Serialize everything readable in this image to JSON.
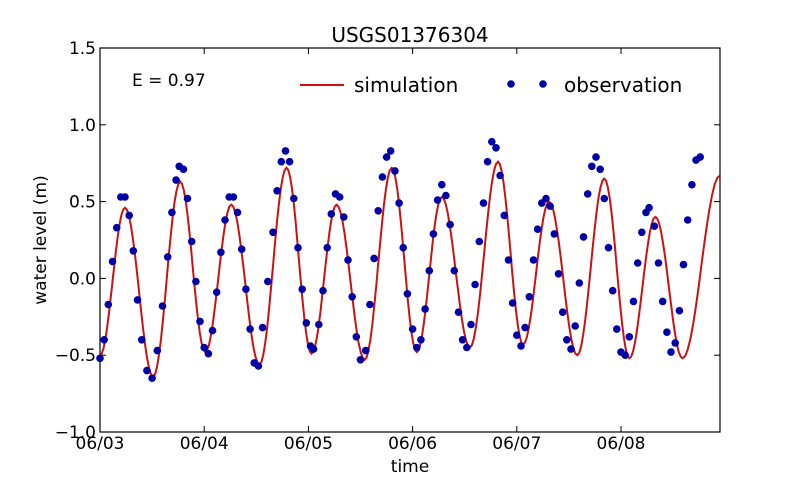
{
  "chart_data": {
    "type": "line",
    "title": "USGS01376304",
    "xlabel": "time",
    "ylabel": "water level (m)",
    "ylim": [
      -1.0,
      1.5
    ],
    "xlim_days": [
      0,
      5.95
    ],
    "x_ticks": [
      "06/03",
      "06/04",
      "06/05",
      "06/06",
      "06/07",
      "06/08"
    ],
    "y_ticks": [
      "−1.0",
      "−0.5",
      "0.0",
      "0.5",
      "1.0",
      "1.5"
    ],
    "annotation": "E = 0.97",
    "legend": {
      "placement": "top-right",
      "entries": [
        "simulation",
        "observation"
      ]
    },
    "colors": {
      "simulation": "#cc1111",
      "observation": "#0000aa"
    },
    "series": [
      {
        "name": "simulation",
        "extrema": [
          [
            0.0,
            -0.5
          ],
          [
            0.24,
            0.46
          ],
          [
            0.51,
            -0.64
          ],
          [
            0.77,
            0.63
          ],
          [
            1.01,
            -0.48
          ],
          [
            1.26,
            0.48
          ],
          [
            1.53,
            -0.56
          ],
          [
            1.79,
            0.72
          ],
          [
            2.03,
            -0.49
          ],
          [
            2.27,
            0.48
          ],
          [
            2.54,
            -0.53
          ],
          [
            2.8,
            0.72
          ],
          [
            3.04,
            -0.48
          ],
          [
            3.28,
            0.53
          ],
          [
            3.55,
            -0.45
          ],
          [
            3.82,
            0.76
          ],
          [
            4.06,
            -0.43
          ],
          [
            4.31,
            0.5
          ],
          [
            4.58,
            -0.5
          ],
          [
            4.84,
            0.65
          ],
          [
            5.08,
            -0.52
          ],
          [
            5.33,
            0.4
          ],
          [
            5.59,
            -0.52
          ],
          [
            5.95,
            0.67
          ]
        ]
      },
      {
        "name": "observation",
        "points": [
          [
            0.0,
            -0.52
          ],
          [
            0.04,
            -0.4
          ],
          [
            0.08,
            -0.17
          ],
          [
            0.12,
            0.11
          ],
          [
            0.16,
            0.33
          ],
          [
            0.2,
            0.53
          ],
          [
            0.24,
            0.53
          ],
          [
            0.28,
            0.41
          ],
          [
            0.32,
            0.18
          ],
          [
            0.36,
            -0.14
          ],
          [
            0.4,
            -0.4
          ],
          [
            0.45,
            -0.6
          ],
          [
            0.5,
            -0.65
          ],
          [
            0.55,
            -0.47
          ],
          [
            0.6,
            -0.18
          ],
          [
            0.65,
            0.14
          ],
          [
            0.69,
            0.43
          ],
          [
            0.73,
            0.64
          ],
          [
            0.76,
            0.73
          ],
          [
            0.8,
            0.71
          ],
          [
            0.84,
            0.52
          ],
          [
            0.88,
            0.24
          ],
          [
            0.92,
            -0.02
          ],
          [
            0.96,
            -0.28
          ],
          [
            1.0,
            -0.45
          ],
          [
            1.04,
            -0.49
          ],
          [
            1.08,
            -0.34
          ],
          [
            1.12,
            -0.09
          ],
          [
            1.16,
            0.17
          ],
          [
            1.2,
            0.38
          ],
          [
            1.24,
            0.53
          ],
          [
            1.28,
            0.53
          ],
          [
            1.32,
            0.43
          ],
          [
            1.36,
            0.19
          ],
          [
            1.4,
            -0.07
          ],
          [
            1.44,
            -0.33
          ],
          [
            1.48,
            -0.55
          ],
          [
            1.52,
            -0.57
          ],
          [
            1.56,
            -0.32
          ],
          [
            1.61,
            -0.02
          ],
          [
            1.66,
            0.3
          ],
          [
            1.7,
            0.57
          ],
          [
            1.74,
            0.76
          ],
          [
            1.78,
            0.83
          ],
          [
            1.82,
            0.76
          ],
          [
            1.86,
            0.52
          ],
          [
            1.9,
            0.2
          ],
          [
            1.94,
            -0.07
          ],
          [
            1.98,
            -0.29
          ],
          [
            2.02,
            -0.44
          ],
          [
            2.05,
            -0.46
          ],
          [
            2.1,
            -0.3
          ],
          [
            2.14,
            -0.08
          ],
          [
            2.18,
            0.2
          ],
          [
            2.22,
            0.42
          ],
          [
            2.26,
            0.55
          ],
          [
            2.3,
            0.53
          ],
          [
            2.34,
            0.4
          ],
          [
            2.38,
            0.12
          ],
          [
            2.42,
            -0.12
          ],
          [
            2.46,
            -0.38
          ],
          [
            2.5,
            -0.53
          ],
          [
            2.55,
            -0.47
          ],
          [
            2.59,
            -0.17
          ],
          [
            2.63,
            0.13
          ],
          [
            2.67,
            0.44
          ],
          [
            2.71,
            0.66
          ],
          [
            2.75,
            0.79
          ],
          [
            2.79,
            0.83
          ],
          [
            2.83,
            0.7
          ],
          [
            2.87,
            0.49
          ],
          [
            2.91,
            0.2
          ],
          [
            2.95,
            -0.1
          ],
          [
            3.0,
            -0.33
          ],
          [
            3.04,
            -0.45
          ],
          [
            3.08,
            -0.4
          ],
          [
            3.12,
            -0.2
          ],
          [
            3.16,
            0.05
          ],
          [
            3.2,
            0.29
          ],
          [
            3.24,
            0.51
          ],
          [
            3.28,
            0.61
          ],
          [
            3.32,
            0.54
          ],
          [
            3.36,
            0.35
          ],
          [
            3.4,
            0.05
          ],
          [
            3.44,
            -0.22
          ],
          [
            3.48,
            -0.4
          ],
          [
            3.52,
            -0.45
          ],
          [
            3.56,
            -0.3
          ],
          [
            3.6,
            -0.04
          ],
          [
            3.64,
            0.24
          ],
          [
            3.68,
            0.49
          ],
          [
            3.72,
            0.76
          ],
          [
            3.76,
            0.89
          ],
          [
            3.8,
            0.85
          ],
          [
            3.84,
            0.67
          ],
          [
            3.88,
            0.41
          ],
          [
            3.92,
            0.12
          ],
          [
            3.96,
            -0.16
          ],
          [
            4.0,
            -0.37
          ],
          [
            4.04,
            -0.44
          ],
          [
            4.08,
            -0.32
          ],
          [
            4.12,
            -0.12
          ],
          [
            4.16,
            0.12
          ],
          [
            4.2,
            0.32
          ],
          [
            4.24,
            0.49
          ],
          [
            4.28,
            0.52
          ],
          [
            4.32,
            0.47
          ],
          [
            4.36,
            0.29
          ],
          [
            4.4,
            0.03
          ],
          [
            4.44,
            -0.22
          ],
          [
            4.48,
            -0.4
          ],
          [
            4.52,
            -0.46
          ],
          [
            4.56,
            -0.31
          ],
          [
            4.6,
            -0.03
          ],
          [
            4.64,
            0.27
          ],
          [
            4.68,
            0.55
          ],
          [
            4.72,
            0.73
          ],
          [
            4.76,
            0.79
          ],
          [
            4.8,
            0.71
          ],
          [
            4.84,
            0.52
          ],
          [
            4.88,
            0.2
          ],
          [
            4.92,
            -0.08
          ],
          [
            4.96,
            -0.33
          ],
          [
            5.0,
            -0.48
          ],
          [
            5.04,
            -0.5
          ],
          [
            5.08,
            -0.38
          ],
          [
            5.12,
            -0.15
          ],
          [
            5.16,
            0.1
          ],
          [
            5.2,
            0.3
          ],
          [
            5.24,
            0.43
          ],
          [
            5.27,
            0.46
          ],
          [
            5.32,
            0.34
          ],
          [
            5.36,
            0.1
          ],
          [
            5.4,
            -0.15
          ],
          [
            5.44,
            -0.35
          ],
          [
            5.48,
            -0.48
          ],
          [
            5.52,
            -0.42
          ],
          [
            5.56,
            -0.21
          ],
          [
            5.6,
            0.09
          ],
          [
            5.64,
            0.38
          ],
          [
            5.68,
            0.61
          ],
          [
            5.72,
            0.77
          ],
          [
            5.76,
            0.79
          ]
        ]
      }
    ]
  }
}
